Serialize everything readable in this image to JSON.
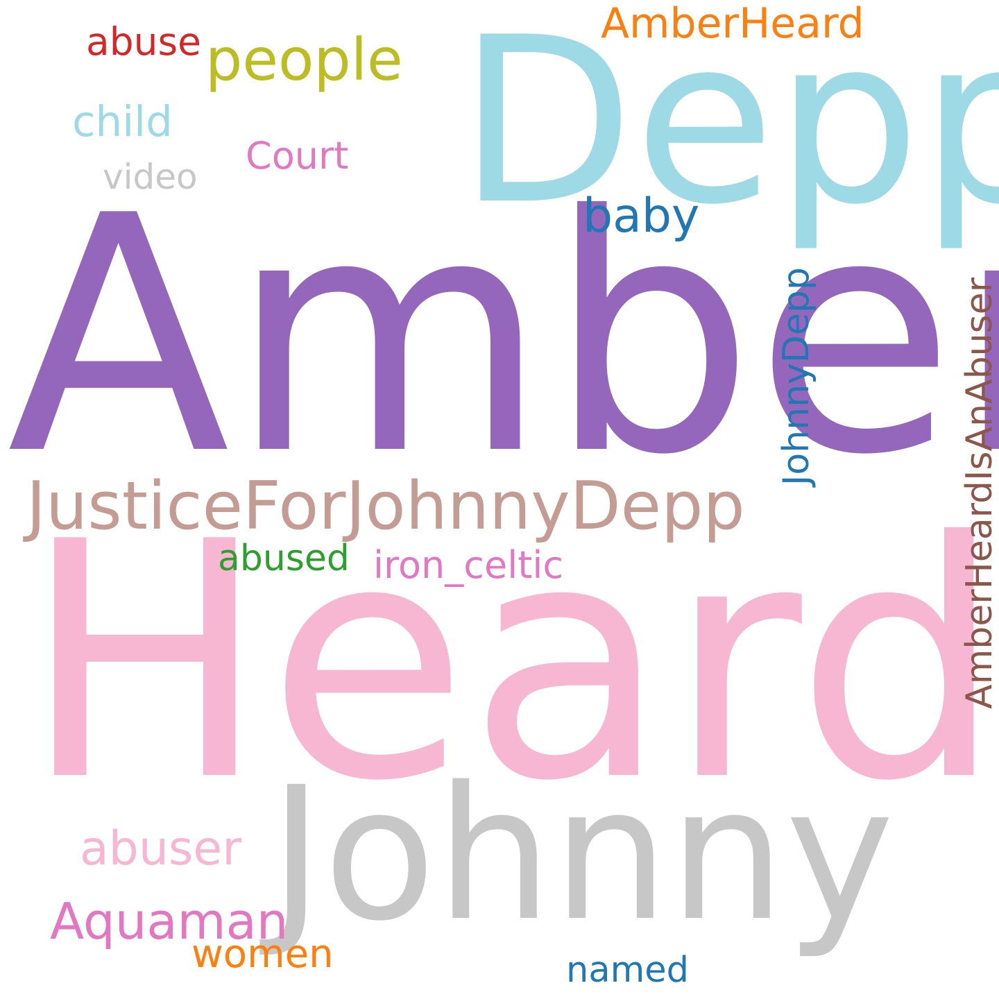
{
  "words": [
    {
      "text": "Amber",
      "color": "#9467bd"
    },
    {
      "text": "Heard",
      "color": "#f7b6d2"
    },
    {
      "text": "Depp",
      "color": "#9edae5"
    },
    {
      "text": "Johnny",
      "color": "#c7c7c7"
    },
    {
      "text": "JusticeForJohnnyDepp",
      "color": "#c49c94"
    },
    {
      "text": "people",
      "color": "#bcbd22"
    },
    {
      "text": "AmberHeard",
      "color": "#ff7f0e"
    },
    {
      "text": "abuse",
      "color": "#d62728"
    },
    {
      "text": "child",
      "color": "#9edae5"
    },
    {
      "text": "Court",
      "color": "#e377c2"
    },
    {
      "text": "video",
      "color": "#c7c7c7"
    },
    {
      "text": "baby",
      "color": "#1f77b4"
    },
    {
      "text": "JohnnyDepp",
      "color": "#1f77b4",
      "orientation": "vertical"
    },
    {
      "text": "AmberHeardIsAnAbuser",
      "color": "#8c564b",
      "orientation": "vertical"
    },
    {
      "text": "abused",
      "color": "#2ca02c"
    },
    {
      "text": "iron_celtic",
      "color": "#e377c2"
    },
    {
      "text": "abuser",
      "color": "#f7b6d2"
    },
    {
      "text": "Aquaman",
      "color": "#e377c2"
    },
    {
      "text": "women",
      "color": "#ff7f0e"
    },
    {
      "text": "named",
      "color": "#1f77b4"
    }
  ]
}
